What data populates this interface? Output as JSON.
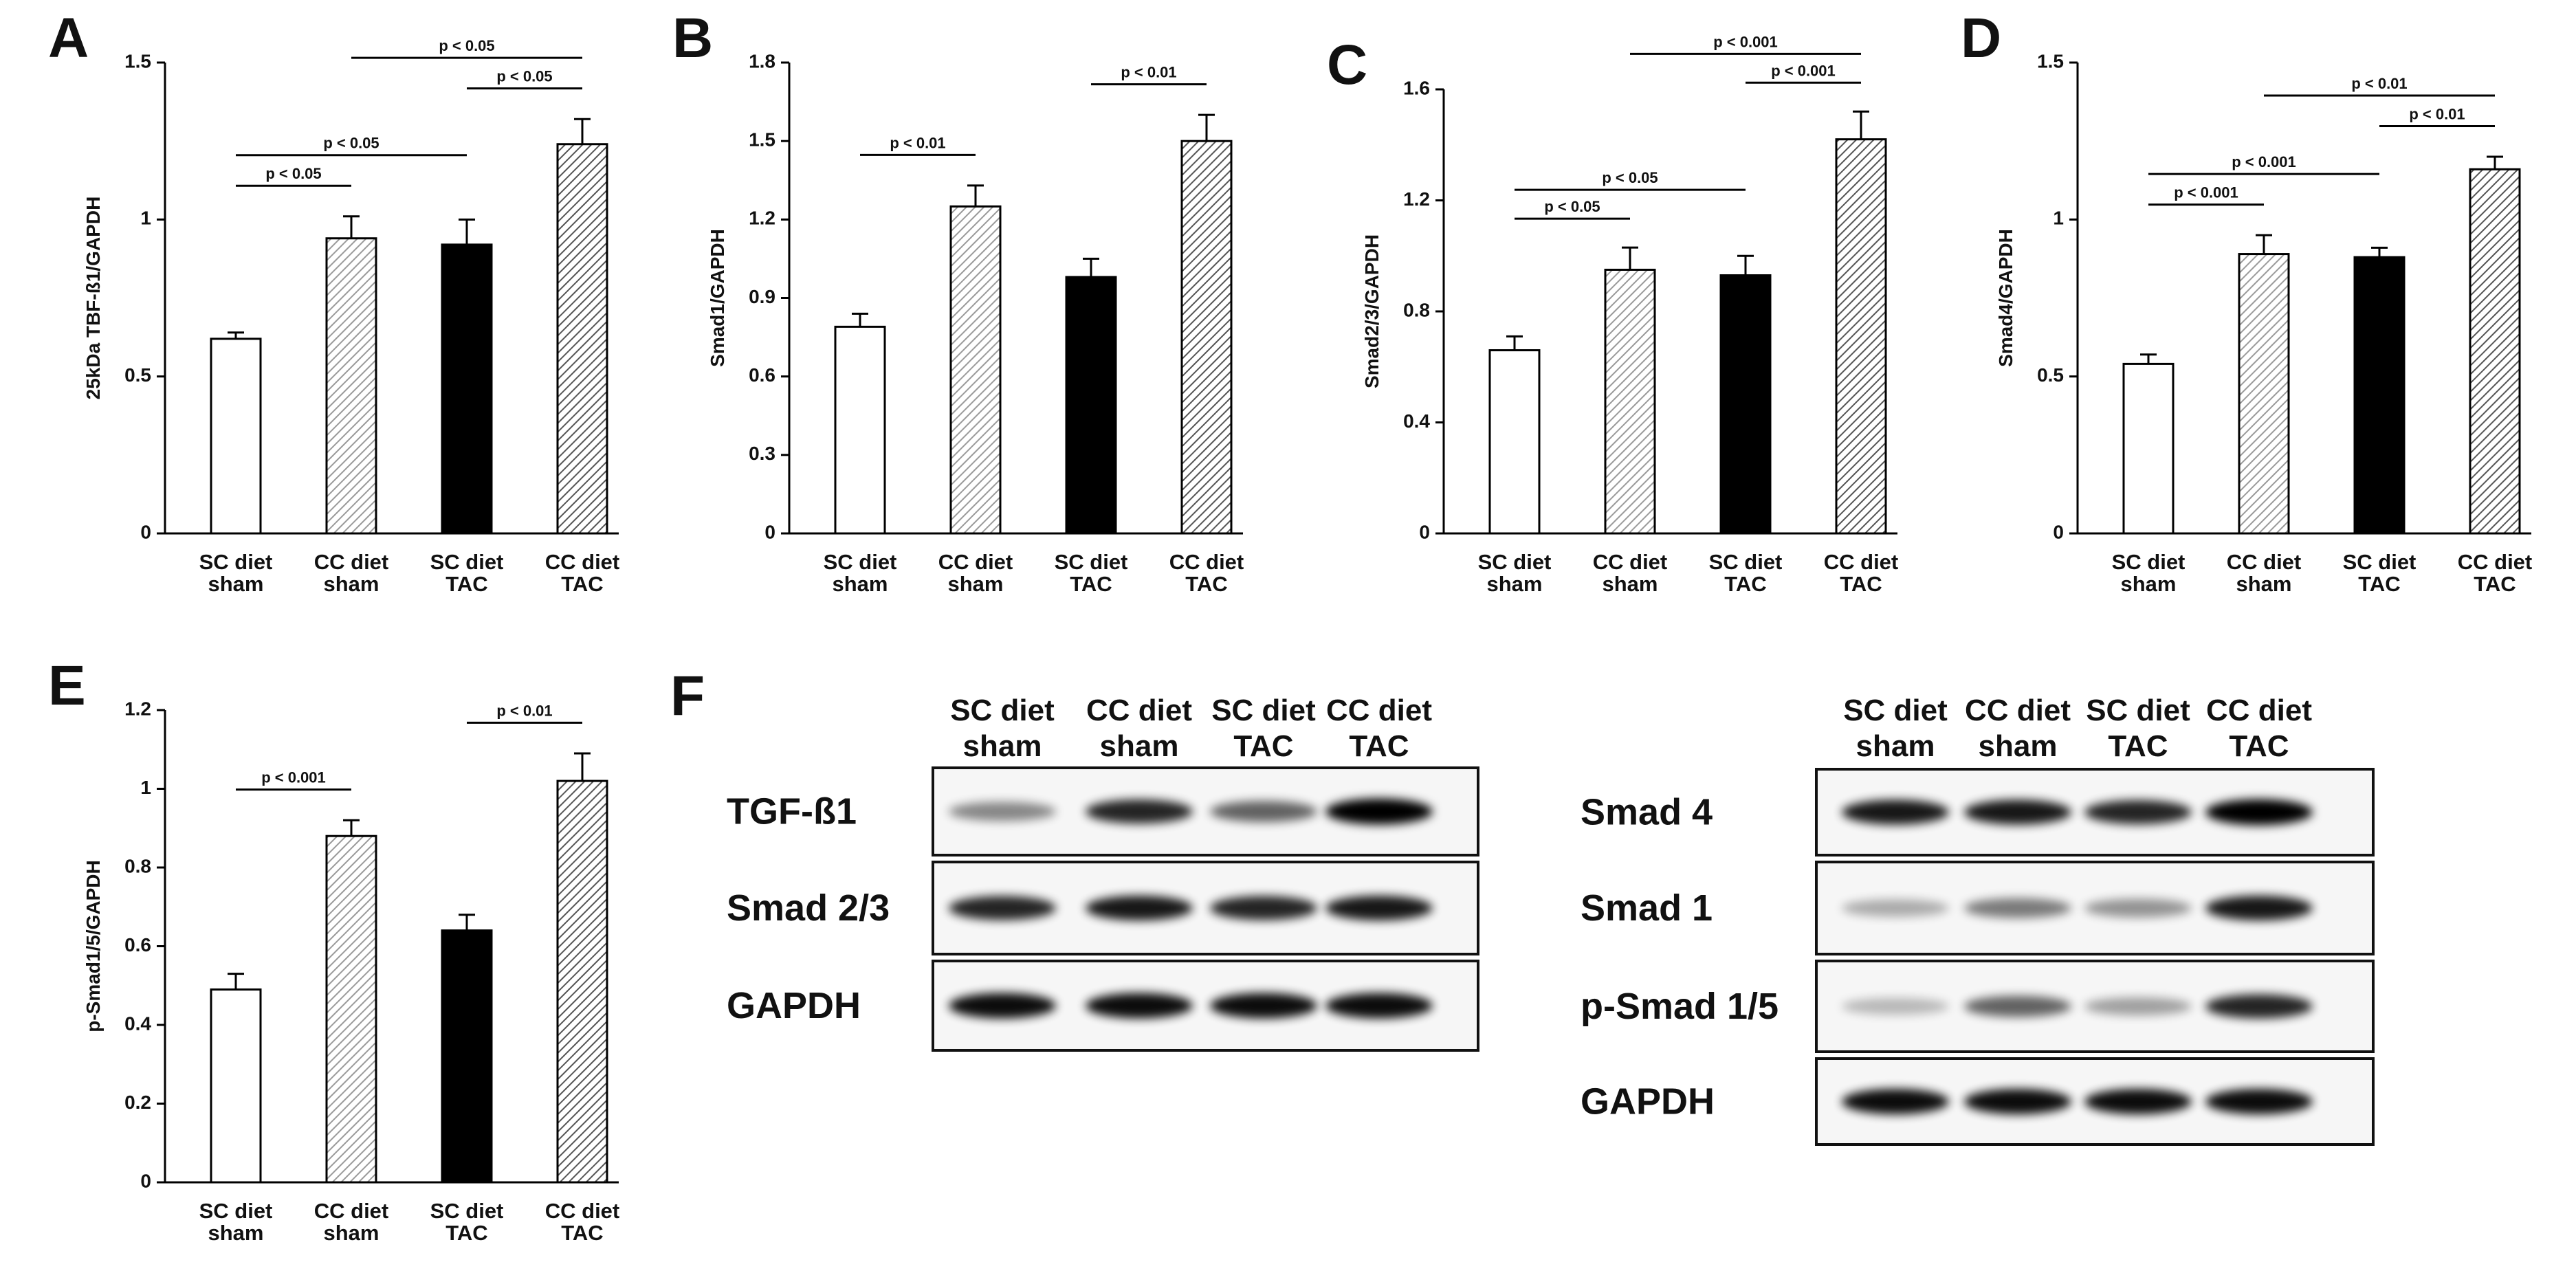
{
  "chart_data": [
    {
      "type": "bar",
      "panel": "A",
      "ylabel": "25kDa TBF-ß1/GAPDH",
      "categories": [
        [
          "SC diet",
          "sham"
        ],
        [
          "CC diet",
          "sham"
        ],
        [
          "SC diet",
          "TAC"
        ],
        [
          "CC diet",
          "TAC"
        ]
      ],
      "values": [
        0.62,
        0.94,
        0.92,
        1.24
      ],
      "errors": [
        0.02,
        0.07,
        0.08,
        0.08
      ],
      "colors": [
        "#ffffff",
        "#9a9a9a",
        "#000000",
        "#555555"
      ],
      "hatched": [
        false,
        true,
        false,
        true
      ],
      "ylim": [
        0,
        1.5
      ],
      "yticks": [
        0,
        0.5,
        1,
        1.5
      ],
      "brackets": [
        {
          "between": [
            0,
            1
          ],
          "label": "p < 0.05"
        },
        {
          "between": [
            0,
            2
          ],
          "label": "p < 0.05"
        },
        {
          "between": [
            2,
            3
          ],
          "label": "p < 0.05"
        },
        {
          "between": [
            1,
            3
          ],
          "label": "p < 0.05"
        }
      ]
    },
    {
      "type": "bar",
      "panel": "B",
      "ylabel": "Smad1/GAPDH",
      "categories": [
        [
          "SC diet",
          "sham"
        ],
        [
          "CC diet",
          "sham"
        ],
        [
          "SC diet",
          "TAC"
        ],
        [
          "CC diet",
          "TAC"
        ]
      ],
      "values": [
        0.79,
        1.25,
        0.98,
        1.5
      ],
      "errors": [
        0.05,
        0.08,
        0.07,
        0.1
      ],
      "colors": [
        "#ffffff",
        "#9a9a9a",
        "#000000",
        "#555555"
      ],
      "hatched": [
        false,
        true,
        false,
        true
      ],
      "ylim": [
        0,
        1.8
      ],
      "yticks": [
        0,
        0.3,
        0.6,
        0.9,
        1.2,
        1.5,
        1.8
      ],
      "brackets": [
        {
          "between": [
            0,
            1
          ],
          "label": "p < 0.01"
        },
        {
          "between": [
            2,
            3
          ],
          "label": "p < 0.01"
        }
      ]
    },
    {
      "type": "bar",
      "panel": "C",
      "ylabel": "Smad2/3/GAPDH",
      "categories": [
        [
          "SC diet",
          "sham"
        ],
        [
          "CC diet",
          "sham"
        ],
        [
          "SC diet",
          "TAC"
        ],
        [
          "CC diet",
          "TAC"
        ]
      ],
      "values": [
        0.66,
        0.95,
        0.93,
        1.42
      ],
      "errors": [
        0.05,
        0.08,
        0.07,
        0.1
      ],
      "colors": [
        "#ffffff",
        "#9a9a9a",
        "#000000",
        "#555555"
      ],
      "hatched": [
        false,
        true,
        false,
        true
      ],
      "ylim": [
        0,
        1.6
      ],
      "yticks": [
        0,
        0.4,
        0.8,
        1.2,
        1.6
      ],
      "brackets": [
        {
          "between": [
            0,
            1
          ],
          "label": "p < 0.05"
        },
        {
          "between": [
            0,
            2
          ],
          "label": "p < 0.05"
        },
        {
          "between": [
            2,
            3
          ],
          "label": "p < 0.001"
        },
        {
          "between": [
            1,
            3
          ],
          "label": "p < 0.001"
        }
      ]
    },
    {
      "type": "bar",
      "panel": "D",
      "ylabel": "Smad4/GAPDH",
      "categories": [
        [
          "SC diet",
          "sham"
        ],
        [
          "CC diet",
          "sham"
        ],
        [
          "SC diet",
          "TAC"
        ],
        [
          "CC diet",
          "TAC"
        ]
      ],
      "values": [
        0.54,
        0.89,
        0.88,
        1.16
      ],
      "errors": [
        0.03,
        0.06,
        0.03,
        0.04
      ],
      "colors": [
        "#ffffff",
        "#9a9a9a",
        "#000000",
        "#555555"
      ],
      "hatched": [
        false,
        true,
        false,
        true
      ],
      "ylim": [
        0,
        1.5
      ],
      "yticks": [
        0,
        0.5,
        1,
        1.5
      ],
      "brackets": [
        {
          "between": [
            0,
            1
          ],
          "label": "p < 0.001"
        },
        {
          "between": [
            0,
            2
          ],
          "label": "p < 0.001"
        },
        {
          "between": [
            2,
            3
          ],
          "label": "p < 0.01"
        },
        {
          "between": [
            1,
            3
          ],
          "label": "p < 0.01"
        }
      ]
    },
    {
      "type": "bar",
      "panel": "E",
      "ylabel": "p-Smad1/5/GAPDH",
      "categories": [
        [
          "SC diet",
          "sham"
        ],
        [
          "CC diet",
          "sham"
        ],
        [
          "SC diet",
          "TAC"
        ],
        [
          "CC diet",
          "TAC"
        ]
      ],
      "values": [
        0.49,
        0.88,
        0.64,
        1.02
      ],
      "errors": [
        0.04,
        0.04,
        0.04,
        0.07
      ],
      "colors": [
        "#ffffff",
        "#9a9a9a",
        "#000000",
        "#555555"
      ],
      "hatched": [
        false,
        true,
        false,
        true
      ],
      "ylim": [
        0,
        1.2
      ],
      "yticks": [
        0,
        0.2,
        0.4,
        0.6,
        0.8,
        1,
        1.2
      ],
      "brackets": [
        {
          "between": [
            0,
            1
          ],
          "label": "p < 0.001"
        },
        {
          "between": [
            2,
            3
          ],
          "label": "p < 0.01"
        }
      ]
    }
  ],
  "blots": {
    "panel": "F",
    "left": {
      "columns": [
        [
          "SC diet",
          "sham"
        ],
        [
          "CC diet",
          "sham"
        ],
        [
          "SC diet",
          "TAC"
        ],
        [
          "CC diet",
          "TAC"
        ]
      ],
      "rows": [
        "TGF-ß1",
        "Smad 2/3",
        "GAPDH"
      ]
    },
    "right": {
      "columns": [
        [
          "SC diet",
          "sham"
        ],
        [
          "CC diet",
          "sham"
        ],
        [
          "SC diet",
          "TAC"
        ],
        [
          "CC diet",
          "TAC"
        ]
      ],
      "rows": [
        "Smad 4",
        "Smad 1",
        "p-Smad 1/5",
        "GAPDH"
      ]
    }
  }
}
